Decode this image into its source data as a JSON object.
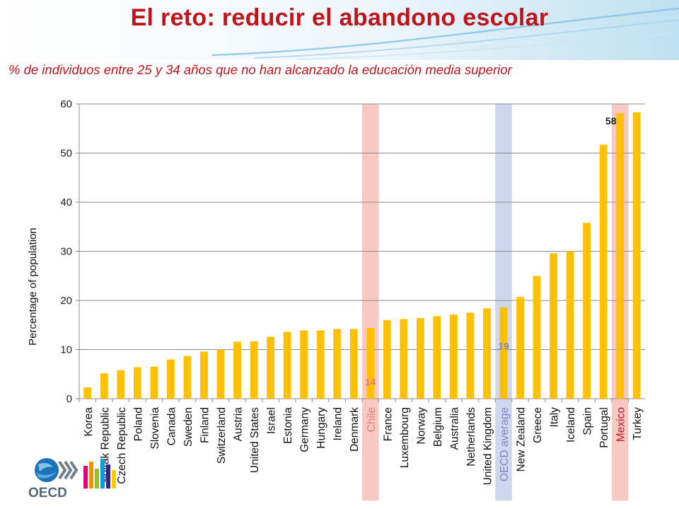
{
  "title": "El reto: reducir el abandono escolar",
  "subtitle": "% de individuos entre 25 y 34 años que no han alcanzado la educación media superior",
  "colors": {
    "title": "#c0141c",
    "bar": "#ffc000",
    "highlight_chile": "#f8c9c3",
    "highlight_oecd": "#cfd6ee",
    "highlight_mexico": "#f8c9c3",
    "chile_label": "#e87a73",
    "oecd_label": "#7d88c8"
  },
  "logo": {
    "text": "OECD",
    "icon": "oecd-globe-logo"
  },
  "chart_data": {
    "type": "bar",
    "title": "",
    "xlabel": "",
    "ylabel": "Percentage of population",
    "ylim": [
      0,
      60
    ],
    "yticks": [
      0,
      10,
      20,
      30,
      40,
      50,
      60
    ],
    "grid": true,
    "categories": [
      "Korea",
      "Slovak Republic",
      "Czech Republic",
      "Poland",
      "Slovenia",
      "Canada",
      "Sweden",
      "Finland",
      "Switzerland",
      "Austria",
      "United States",
      "Israel",
      "Estonia",
      "Germany",
      "Hungary",
      "Ireland",
      "Denmark",
      "Chile",
      "France",
      "Luxembourg",
      "Norway",
      "Belgium",
      "Australia",
      "Netherlands",
      "United Kingdom",
      "OECD average",
      "New Zealand",
      "Greece",
      "Italy",
      "Iceland",
      "Spain",
      "Portugal",
      "Mexico",
      "Turkey"
    ],
    "values": [
      2.3,
      5.2,
      5.8,
      6.4,
      6.5,
      8.0,
      8.7,
      9.6,
      10.0,
      11.6,
      11.7,
      12.6,
      13.6,
      13.9,
      13.9,
      14.2,
      14.2,
      14.4,
      16.0,
      16.2,
      16.4,
      16.8,
      17.1,
      17.5,
      18.4,
      18.6,
      20.7,
      25.0,
      29.6,
      30.0,
      35.8,
      51.7,
      58.1,
      58.3
    ],
    "highlights": [
      {
        "category": "Chile",
        "label": "14",
        "color_key": "highlight_chile",
        "label_color_key": "chile_label"
      },
      {
        "category": "OECD average",
        "label": "19",
        "color_key": "highlight_oecd",
        "label_color_key": "oecd_label"
      },
      {
        "category": "Mexico",
        "label": "58",
        "color_key": "highlight_mexico",
        "label_color_key": "title"
      }
    ]
  }
}
